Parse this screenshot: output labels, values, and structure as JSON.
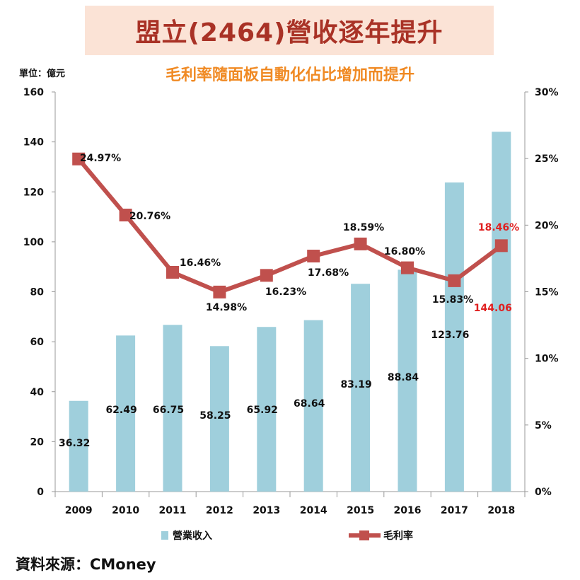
{
  "header": {
    "title": "盟立(2464)營收逐年提升",
    "subtitle": "毛利率隨面板自動化佔比增加而提升",
    "unit": "單位：億元"
  },
  "footer": {
    "source": "資料來源：CMoney"
  },
  "colors": {
    "bar": "#9fcfdc",
    "line": "#c0504d",
    "highlight": "#e02020",
    "title": "#a93226",
    "subtitle": "#f08a24",
    "title_bg": "#fbe3d6"
  },
  "chart_data": {
    "type": "bar+line",
    "title": "盟立(2464)營收逐年提升",
    "subtitle": "毛利率隨面板自動化佔比增加而提升",
    "ylabel": "單位：億元",
    "categories": [
      "2009",
      "2010",
      "2011",
      "2012",
      "2013",
      "2014",
      "2015",
      "2016",
      "2017",
      "2018"
    ],
    "series": [
      {
        "name": "營業收入",
        "type": "bar",
        "axis": "left",
        "values": [
          36.32,
          62.49,
          66.75,
          58.25,
          65.92,
          68.64,
          83.19,
          88.84,
          123.76,
          144.06
        ],
        "labels": [
          "36.32",
          "62.49",
          "66.75",
          "58.25",
          "65.92",
          "68.64",
          "83.19",
          "88.84",
          "123.76",
          "144.06"
        ]
      },
      {
        "name": "毛利率",
        "type": "line",
        "axis": "right",
        "values": [
          24.97,
          20.76,
          16.46,
          14.98,
          16.23,
          17.68,
          18.59,
          16.8,
          15.83,
          18.46
        ],
        "labels": [
          "24.97%",
          "20.76%",
          "16.46%",
          "14.98%",
          "16.23%",
          "17.68%",
          "18.59%",
          "16.80%",
          "15.83%",
          "18.46%"
        ]
      }
    ],
    "y_left": {
      "range": [
        0,
        160
      ],
      "ticks": [
        "0",
        "20",
        "40",
        "60",
        "80",
        "100",
        "120",
        "140",
        "160"
      ]
    },
    "y_right": {
      "range": [
        0,
        30
      ],
      "ticks": [
        "0%",
        "5%",
        "10%",
        "15%",
        "20%",
        "25%",
        "30%"
      ]
    },
    "highlight_index": 9,
    "legend": {
      "position": "bottom",
      "items": [
        "營業收入",
        "毛利率"
      ]
    },
    "grid": false
  }
}
